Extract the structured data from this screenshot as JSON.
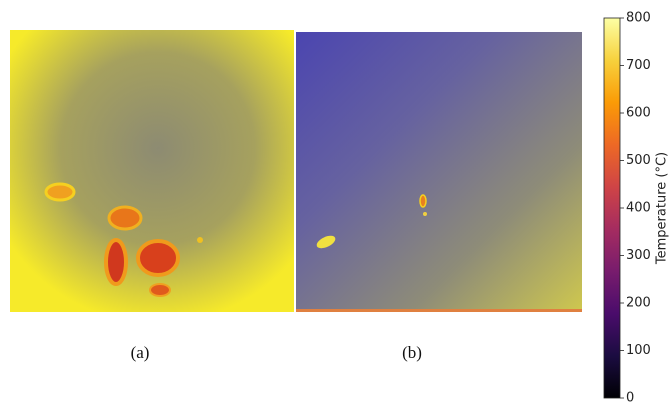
{
  "panels": [
    {
      "label": "(a)"
    },
    {
      "label": "(b)"
    }
  ],
  "colorbar": {
    "label": "Temperature (°C)",
    "lim": [
      0,
      800
    ],
    "ticks": [
      0,
      100,
      200,
      300,
      400,
      500,
      600,
      700,
      800
    ],
    "colormap": "inferno"
  }
}
